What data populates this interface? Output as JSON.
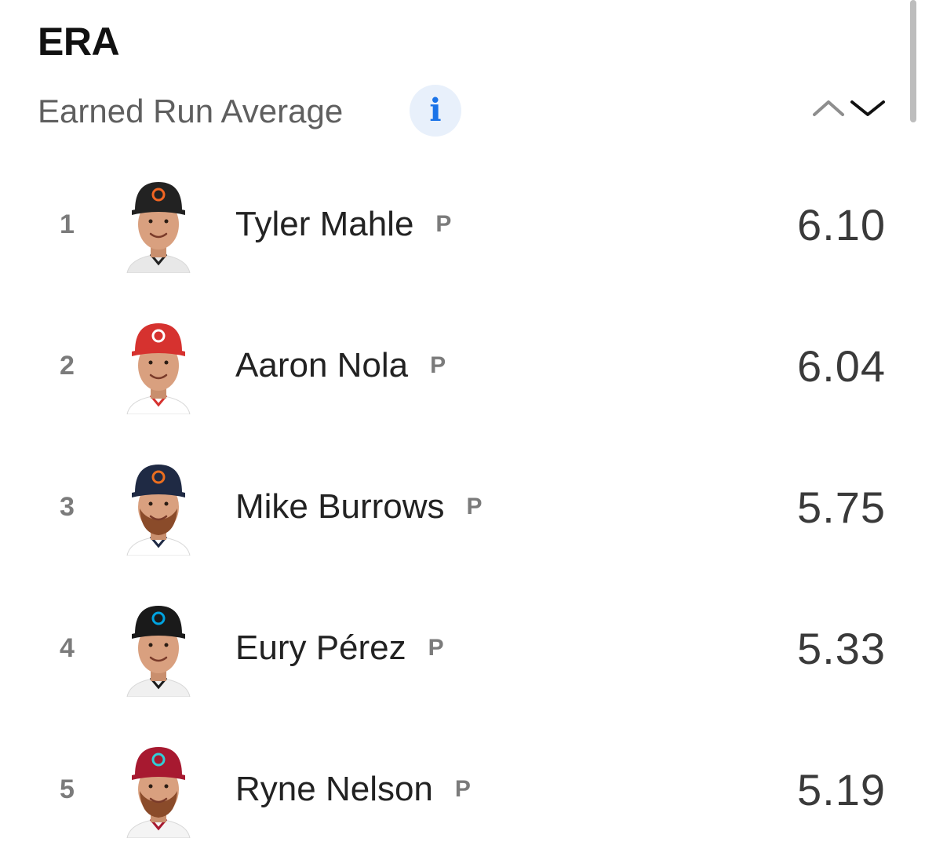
{
  "header": {
    "title": "ERA",
    "subtitle": "Earned Run Average",
    "info_icon": "i"
  },
  "sort": {
    "up_icon": "chevron-up-icon",
    "down_icon": "chevron-down-icon"
  },
  "colors": {
    "info_accent": "#1a73e8",
    "info_bg": "#e8f0fb"
  },
  "players": [
    {
      "rank": "1",
      "name": "Tyler Mahle",
      "pos": "P",
      "value": "6.10",
      "cap": "#222222",
      "logo": "#f26522",
      "shirt": "#e8e8e8",
      "beard": false
    },
    {
      "rank": "2",
      "name": "Aaron Nola",
      "pos": "P",
      "value": "6.04",
      "cap": "#d6322f",
      "logo": "#ffffff",
      "shirt": "#ffffff",
      "beard": false
    },
    {
      "rank": "3",
      "name": "Mike Burrows",
      "pos": "P",
      "value": "5.75",
      "cap": "#1f2a44",
      "logo": "#eb6e1f",
      "shirt": "#ffffff",
      "beard": true
    },
    {
      "rank": "4",
      "name": "Eury Pérez",
      "pos": "P",
      "value": "5.33",
      "cap": "#1a1a1a",
      "logo": "#00a3e0",
      "shirt": "#f0f0f0",
      "beard": false
    },
    {
      "rank": "5",
      "name": "Ryne Nelson",
      "pos": "P",
      "value": "5.19",
      "cap": "#a71930",
      "logo": "#30ced8",
      "shirt": "#f4f4f4",
      "beard": true
    }
  ]
}
